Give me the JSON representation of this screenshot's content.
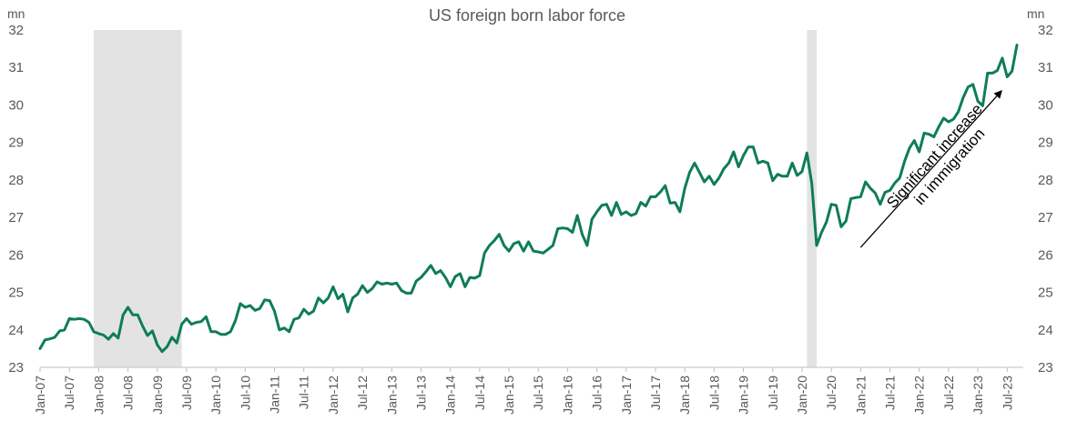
{
  "chart_data": {
    "type": "line",
    "title": "US foreign born labor force",
    "y_unit_left": "mn",
    "y_unit_right": "mn",
    "ylim": [
      23,
      32
    ],
    "y_ticks": [
      23,
      24,
      25,
      26,
      27,
      28,
      29,
      30,
      31,
      32
    ],
    "x_ticks": [
      "Jan-07",
      "Jul-07",
      "Jan-08",
      "Jul-08",
      "Jan-09",
      "Jul-09",
      "Jan-10",
      "Jul-10",
      "Jan-11",
      "Jul-11",
      "Jan-12",
      "Jul-12",
      "Jan-13",
      "Jul-13",
      "Jan-14",
      "Jul-14",
      "Jan-15",
      "Jul-15",
      "Jan-16",
      "Jul-16",
      "Jan-17",
      "Jul-17",
      "Jan-18",
      "Jul-18",
      "Jan-19",
      "Jul-19",
      "Jan-20",
      "Jul-20",
      "Jan-21",
      "Jul-21",
      "Jan-22",
      "Jul-22",
      "Jan-23",
      "Jul-23"
    ],
    "grid": false,
    "recession_shading": [
      {
        "start": "2007-12",
        "end": "2009-06"
      },
      {
        "start": "2020-02",
        "end": "2020-04"
      }
    ],
    "annotation": {
      "lines": [
        "Significant increase",
        "in immigration"
      ],
      "arrow_from": {
        "x": "2021-01",
        "y": 26.2
      },
      "arrow_to": {
        "x": "2023-06",
        "y": 30.4
      }
    },
    "series": [
      {
        "color": "#0e7c5a",
        "start": "2007-01",
        "frequency": "monthly",
        "values": [
          23.5,
          23.73,
          23.76,
          23.8,
          23.97,
          24.0,
          24.3,
          24.28,
          24.3,
          24.28,
          24.2,
          23.95,
          23.9,
          23.86,
          23.75,
          23.9,
          23.78,
          24.4,
          24.6,
          24.4,
          24.4,
          24.1,
          23.85,
          23.97,
          23.6,
          23.42,
          23.55,
          23.8,
          23.65,
          24.15,
          24.3,
          24.15,
          24.2,
          24.22,
          24.35,
          23.95,
          23.95,
          23.88,
          23.88,
          23.95,
          24.25,
          24.7,
          24.6,
          24.65,
          24.52,
          24.57,
          24.8,
          24.78,
          24.5,
          24.0,
          24.05,
          23.95,
          24.28,
          24.32,
          24.55,
          24.42,
          24.5,
          24.85,
          24.72,
          24.85,
          25.15,
          24.83,
          24.95,
          24.48,
          24.85,
          24.95,
          25.18,
          25.0,
          25.1,
          25.28,
          25.22,
          25.25,
          25.22,
          25.25,
          25.05,
          24.98,
          24.98,
          25.3,
          25.4,
          25.55,
          25.72,
          25.5,
          25.58,
          25.4,
          25.15,
          25.42,
          25.5,
          25.15,
          25.4,
          25.38,
          25.45,
          26.05,
          26.25,
          26.38,
          26.55,
          26.25,
          26.1,
          26.3,
          26.35,
          26.1,
          26.35,
          26.1,
          26.08,
          26.05,
          26.15,
          26.25,
          26.7,
          26.72,
          26.7,
          26.6,
          27.05,
          26.55,
          26.25,
          26.95,
          27.15,
          27.32,
          27.35,
          27.05,
          27.4,
          27.08,
          27.15,
          27.05,
          27.1,
          27.4,
          27.3,
          27.55,
          27.55,
          27.68,
          27.85,
          27.38,
          27.4,
          27.15,
          27.78,
          28.2,
          28.45,
          28.2,
          27.95,
          28.1,
          27.88,
          28.05,
          28.3,
          28.45,
          28.75,
          28.35,
          28.65,
          28.88,
          28.88,
          28.45,
          28.5,
          28.45,
          27.98,
          28.15,
          28.1,
          28.1,
          28.45,
          28.12,
          28.22,
          28.72,
          27.9,
          26.25,
          26.6,
          26.88,
          27.35,
          27.32,
          26.75,
          26.9,
          27.5,
          27.53,
          27.55,
          27.95,
          27.78,
          27.65,
          27.35,
          27.67,
          27.72,
          27.92,
          28.05,
          28.5,
          28.85,
          29.05,
          28.75,
          29.25,
          29.22,
          29.15,
          29.42,
          29.65,
          29.55,
          29.62,
          29.82,
          30.2,
          30.48,
          30.55,
          30.1,
          29.98,
          30.85,
          30.85,
          30.92,
          31.25,
          30.75,
          30.9,
          31.6
        ]
      }
    ]
  }
}
